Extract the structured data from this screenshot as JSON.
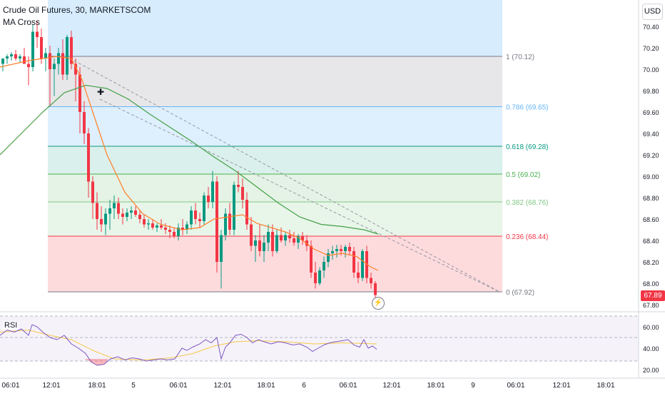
{
  "header": {
    "title": "Crude Oil Futures, 30, MARKETSCOM",
    "indicator": "MA Cross",
    "currency_button": "USD"
  },
  "price_axis": {
    "ticks": [
      "70.40",
      "70.20",
      "70.00",
      "69.80",
      "69.60",
      "69.40",
      "69.20",
      "69.00",
      "68.80",
      "68.60",
      "68.40",
      "68.20",
      "68.00",
      "67.80"
    ],
    "current_price": "67.89",
    "current_color": "#f23645"
  },
  "rsi_axis": {
    "label": "RSI",
    "ticks": [
      "60.00",
      "40.00",
      "20.00"
    ]
  },
  "time_axis": {
    "ticks": [
      "06:01",
      "12:01",
      "18:01",
      "5",
      "06:01",
      "12:01",
      "18:01",
      "6",
      "06:01",
      "12:01",
      "18:01",
      "9",
      "06:01",
      "12:01",
      "18:01"
    ]
  },
  "fib_levels": [
    {
      "label": "1 (70.12)",
      "value": 70.12,
      "color": "#787b86",
      "text_color": "#787b86"
    },
    {
      "label": "0.786 (69.65)",
      "value": 69.65,
      "color": "#64b5f6",
      "text_color": "#64b5f6"
    },
    {
      "label": "0.618 (69.28)",
      "value": 69.28,
      "color": "#089981",
      "text_color": "#089981"
    },
    {
      "label": "0.5 (69.02)",
      "value": 69.02,
      "color": "#4caf50",
      "text_color": "#4caf50"
    },
    {
      "label": "0.382 (68.76)",
      "value": 68.76,
      "color": "#81c784",
      "text_color": "#81c784"
    },
    {
      "label": "0.236 (68.44)",
      "value": 68.44,
      "color": "#f23645",
      "text_color": "#f23645"
    },
    {
      "label": "0 (67.92)",
      "value": 67.92,
      "color": "#787b86",
      "text_color": "#787b86"
    }
  ],
  "colors": {
    "up": "#089981",
    "down": "#f23645",
    "ma_fast": "#ff7f2a",
    "ma_slow": "#43a047",
    "rsi_line": "#7e57c2",
    "rsi_ma": "#f7c948"
  }
}
